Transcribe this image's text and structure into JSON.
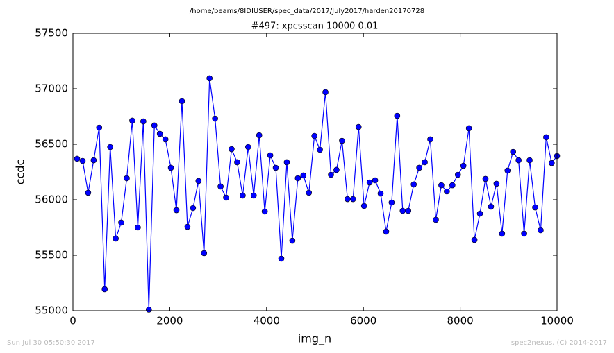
{
  "chart_data": {
    "type": "line",
    "suptitle": "/home/beams/8IDIUSER/spec_data/2017/July2017/harden20170728",
    "title": "#497: xpcsscan 10000 0.01",
    "xlabel": "img_n",
    "ylabel": "ccdc",
    "xlim": [
      0,
      10000
    ],
    "xticks": [
      0,
      2000,
      4000,
      6000,
      8000,
      10000
    ],
    "ylim": [
      55000,
      57500
    ],
    "yticks": [
      55000,
      55500,
      56000,
      56500,
      57000,
      57500
    ],
    "series": [
      {
        "name": "ccdc",
        "color": "#0000ff",
        "x": [
          86,
          200,
          314,
          428,
          542,
          656,
          770,
          884,
          998,
          1112,
          1226,
          1340,
          1454,
          1568,
          1682,
          1796,
          1910,
          2024,
          2138,
          2252,
          2366,
          2480,
          2594,
          2708,
          2822,
          2936,
          3050,
          3164,
          3278,
          3392,
          3506,
          3620,
          3734,
          3848,
          3962,
          4076,
          4190,
          4304,
          4418,
          4532,
          4646,
          4760,
          4874,
          4988,
          5102,
          5216,
          5330,
          5444,
          5558,
          5672,
          5786,
          5900,
          6014,
          6128,
          6242,
          6356,
          6470,
          6584,
          6698,
          6812,
          6926,
          7040,
          7154,
          7268,
          7382,
          7496,
          7610,
          7724,
          7838,
          7952,
          8066,
          8180,
          8294,
          8408,
          8522,
          8636,
          8750,
          8864,
          8978,
          9092,
          9206,
          9320,
          9434,
          9548,
          9662,
          9776,
          9890,
          10000
        ],
        "values": [
          56369,
          56350,
          56063,
          56356,
          56650,
          55194,
          56475,
          55650,
          55794,
          56194,
          56713,
          55750,
          56706,
          55010,
          56669,
          56594,
          56544,
          56288,
          55906,
          56888,
          55756,
          55925,
          56169,
          55519,
          57094,
          56731,
          56119,
          56019,
          56456,
          56338,
          56038,
          56475,
          56038,
          56581,
          55894,
          56400,
          56288,
          55469,
          56338,
          55631,
          56194,
          56219,
          56063,
          56575,
          56450,
          56969,
          56225,
          56269,
          56531,
          56006,
          56006,
          56656,
          55944,
          56156,
          56175,
          56056,
          55713,
          55975,
          56756,
          55900,
          55900,
          56138,
          56288,
          56338,
          56544,
          55819,
          56131,
          56075,
          56131,
          56225,
          56306,
          56644,
          55638,
          55875,
          56188,
          55938,
          56144,
          55694,
          56263,
          56431,
          56356,
          55694,
          56356,
          55931,
          55725,
          56563,
          56331,
          56394
        ]
      }
    ]
  },
  "footer": {
    "left": "Sun Jul 30 05:50:30 2017",
    "right": "spec2nexus, (C) 2014-2017"
  }
}
